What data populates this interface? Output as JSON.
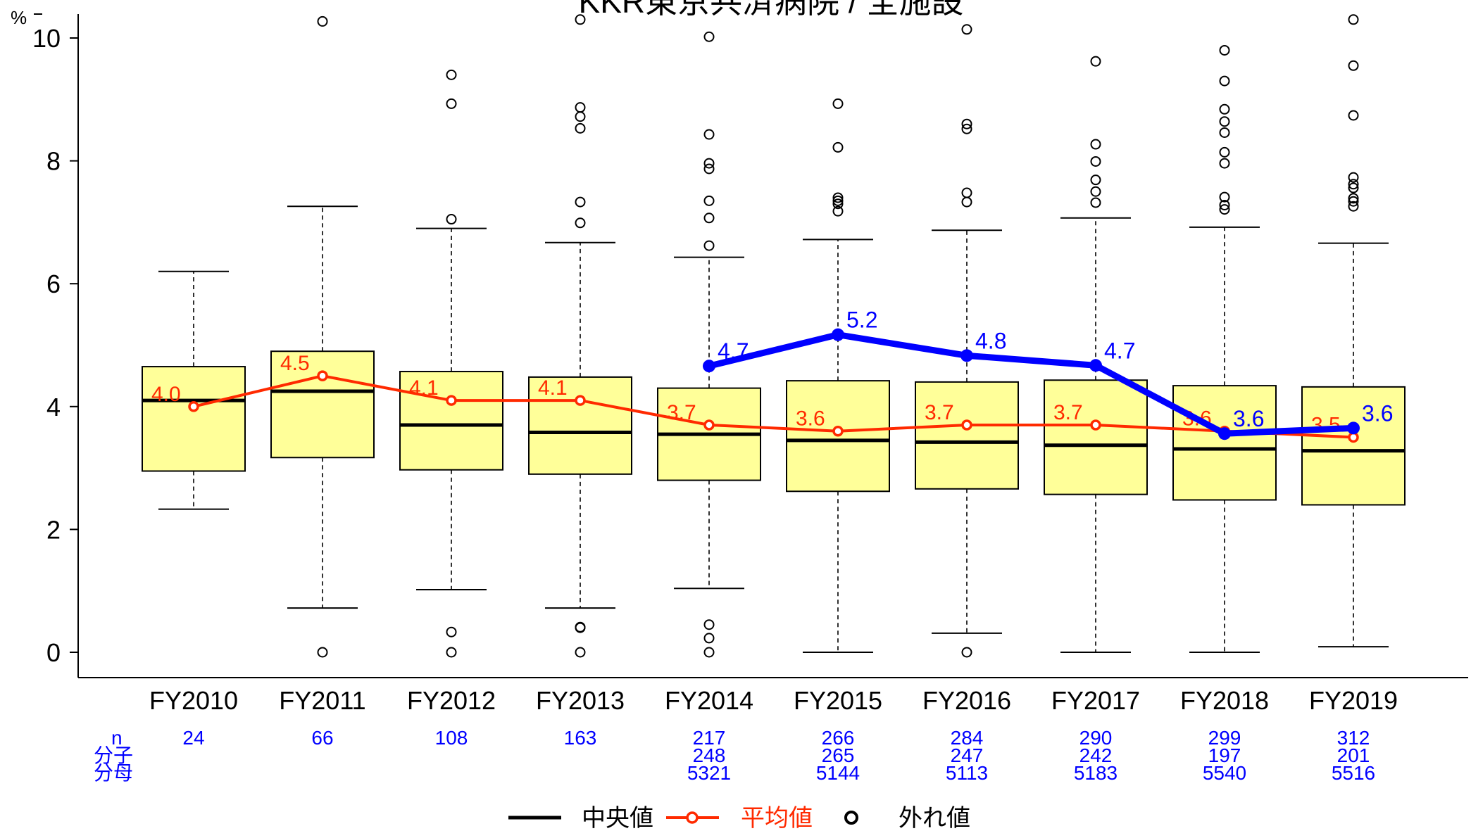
{
  "chart_data": {
    "type": "box",
    "title": "KKR東京共済病院 / 全施設",
    "ylabel": "%",
    "ylim": [
      0,
      10
    ],
    "yticks": [
      "0",
      "2",
      "4",
      "6",
      "8",
      "10"
    ],
    "categories": [
      "FY2010",
      "FY2011",
      "FY2012",
      "FY2013",
      "FY2014",
      "FY2015",
      "FY2016",
      "FY2017",
      "FY2018",
      "FY2019"
    ],
    "boxes": [
      {
        "q1": 2.95,
        "median": 4.1,
        "q3": 4.65,
        "whisker_low": 2.33,
        "whisker_high": 6.2,
        "outliers": []
      },
      {
        "q1": 3.17,
        "median": 4.25,
        "q3": 4.9,
        "whisker_low": 0.72,
        "whisker_high": 7.26,
        "outliers": [
          0.0,
          10.27
        ]
      },
      {
        "q1": 2.97,
        "median": 3.7,
        "q3": 4.57,
        "whisker_low": 1.02,
        "whisker_high": 6.9,
        "outliers": [
          0.0,
          0.33,
          7.05,
          8.93,
          9.4
        ]
      },
      {
        "q1": 2.9,
        "median": 3.58,
        "q3": 4.48,
        "whisker_low": 0.72,
        "whisker_high": 6.67,
        "outliers": [
          0.0,
          0.4,
          0.41,
          6.99,
          7.33,
          8.53,
          8.72,
          8.87,
          10.3
        ]
      },
      {
        "q1": 2.8,
        "median": 3.55,
        "q3": 4.3,
        "whisker_low": 1.04,
        "whisker_high": 6.43,
        "outliers": [
          0.0,
          0.23,
          0.45,
          6.62,
          7.07,
          7.35,
          7.87,
          7.96,
          8.43,
          10.02
        ]
      },
      {
        "q1": 2.62,
        "median": 3.45,
        "q3": 4.42,
        "whisker_low": 0.0,
        "whisker_high": 6.72,
        "outliers": [
          7.18,
          7.3,
          7.35,
          7.4,
          8.22,
          8.93
        ]
      },
      {
        "q1": 2.66,
        "median": 3.42,
        "q3": 4.4,
        "whisker_low": 0.31,
        "whisker_high": 6.87,
        "outliers": [
          0.0,
          7.33,
          7.48,
          8.52,
          8.6,
          10.14
        ]
      },
      {
        "q1": 2.57,
        "median": 3.37,
        "q3": 4.43,
        "whisker_low": 0.0,
        "whisker_high": 7.07,
        "outliers": [
          7.32,
          7.5,
          7.69,
          7.99,
          8.27,
          9.62
        ]
      },
      {
        "q1": 2.48,
        "median": 3.31,
        "q3": 4.34,
        "whisker_low": 0.0,
        "whisker_high": 6.92,
        "outliers": [
          7.21,
          7.28,
          7.41,
          7.96,
          8.14,
          8.46,
          8.64,
          8.84,
          9.3,
          9.8
        ]
      },
      {
        "q1": 2.4,
        "median": 3.28,
        "q3": 4.32,
        "whisker_low": 0.09,
        "whisker_high": 6.66,
        "outliers": [
          7.26,
          7.34,
          7.39,
          7.56,
          7.62,
          7.73,
          8.74,
          9.55,
          10.3
        ]
      }
    ],
    "series": [
      {
        "name": "平均値",
        "values": [
          4.0,
          4.5,
          4.1,
          4.1,
          3.7,
          3.6,
          3.7,
          3.7,
          3.6,
          3.5
        ],
        "labels": [
          "4.0",
          "4.5",
          "4.1",
          "4.1",
          "3.7",
          "3.6",
          "3.7",
          "3.7",
          "3.6",
          "3.5"
        ]
      },
      {
        "values": [
          null,
          null,
          null,
          null,
          4.66,
          5.17,
          4.83,
          4.67,
          3.56,
          3.65
        ],
        "labels": [
          "",
          "",
          "",
          "",
          "4.7",
          "5.2",
          "4.8",
          "4.7",
          "3.6",
          "3.6"
        ]
      }
    ],
    "legend": {
      "items": [
        "中央値",
        "平均値",
        "外れ値"
      ],
      "position": "bottom"
    },
    "table": {
      "row_labels": [
        "n",
        "分子",
        "分母"
      ],
      "n": [
        "24",
        "66",
        "108",
        "163",
        "217",
        "266",
        "284",
        "290",
        "299",
        "312"
      ],
      "numerator": [
        "",
        "",
        "",
        "",
        "248",
        "265",
        "247",
        "242",
        "197",
        "201"
      ],
      "denominator": [
        "",
        "",
        "",
        "",
        "5321",
        "5144",
        "5113",
        "5183",
        "5540",
        "5516"
      ]
    },
    "colors": {
      "box_fill": "#FFFF99",
      "mean_line": "#FF2A00",
      "hospital_line": "#0000FF",
      "table_text": "#0000FF"
    },
    "grid": false
  }
}
